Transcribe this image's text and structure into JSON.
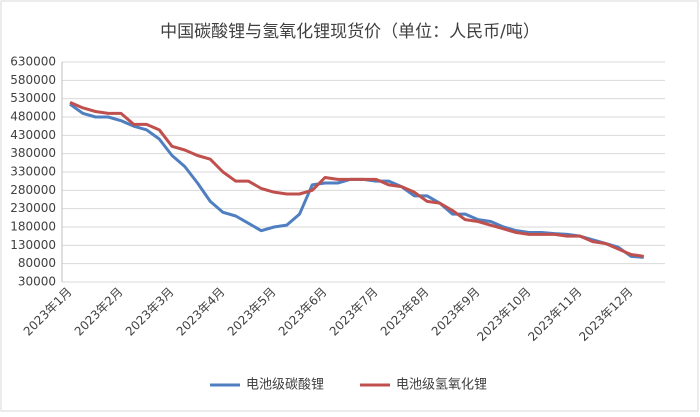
{
  "chart_data": {
    "type": "line",
    "title": "中国碳酸锂与氢氧化锂现货价（单位：人民币/吨）",
    "categories": [
      "2023年1月",
      null,
      null,
      null,
      "2023年2月",
      null,
      null,
      null,
      "2023年3月",
      null,
      null,
      null,
      "2023年4月",
      null,
      null,
      null,
      "2023年5月",
      null,
      null,
      null,
      "2023年6月",
      null,
      null,
      null,
      "2023年7月",
      null,
      null,
      null,
      "2023年8月",
      null,
      null,
      null,
      "2023年9月",
      null,
      null,
      null,
      "2023年10月",
      null,
      null,
      null,
      "2023年11月",
      null,
      null,
      null,
      "2023年12月",
      null
    ],
    "series": [
      {
        "name": "电池级碳酸锂",
        "color": "#4f7fc0",
        "values": [
          515000,
          490000,
          480000,
          480000,
          470000,
          455000,
          445000,
          420000,
          375000,
          345000,
          300000,
          250000,
          220000,
          210000,
          190000,
          170000,
          180000,
          185000,
          215000,
          295000,
          300000,
          300000,
          310000,
          310000,
          305000,
          305000,
          290000,
          265000,
          265000,
          245000,
          215000,
          215000,
          200000,
          195000,
          180000,
          170000,
          165000,
          165000,
          162000,
          160000,
          155000,
          145000,
          135000,
          125000,
          100000,
          97000
        ]
      },
      {
        "name": "电池级氢氧化锂",
        "color": "#c0504d",
        "values": [
          520000,
          505000,
          495000,
          490000,
          490000,
          460000,
          460000,
          445000,
          400000,
          390000,
          375000,
          365000,
          330000,
          305000,
          305000,
          285000,
          275000,
          270000,
          270000,
          280000,
          315000,
          310000,
          310000,
          310000,
          310000,
          295000,
          290000,
          275000,
          250000,
          245000,
          225000,
          200000,
          195000,
          185000,
          175000,
          165000,
          160000,
          160000,
          160000,
          155000,
          155000,
          140000,
          135000,
          120000,
          105000,
          100000
        ]
      }
    ],
    "ylim": [
      30000,
      630000
    ],
    "yticks": [
      30000,
      80000,
      130000,
      180000,
      230000,
      280000,
      330000,
      380000,
      430000,
      480000,
      530000,
      580000,
      630000
    ],
    "grid": true,
    "legend": "bottom"
  }
}
